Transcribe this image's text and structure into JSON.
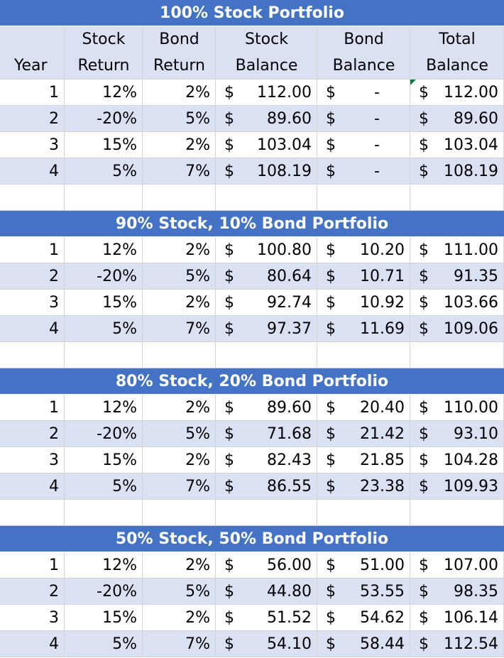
{
  "header": [
    [
      "Year"
    ],
    [
      "Stock",
      "Return"
    ],
    [
      "Bond",
      "Return"
    ],
    [
      "Stock",
      "Balance"
    ],
    [
      "Bond",
      "Balance"
    ],
    [
      "Total",
      "Balance"
    ]
  ],
  "sections": [
    {
      "title": "100% Stock Portfolio",
      "rows": [
        [
          "1",
          "12%",
          "2%",
          "$",
          "112.00",
          "$",
          "-",
          "$",
          "112.00"
        ],
        [
          "2",
          "-20%",
          "5%",
          "$",
          "89.60",
          "$",
          "-",
          "$",
          "89.60"
        ],
        [
          "3",
          "15%",
          "2%",
          "$",
          "103.04",
          "$",
          "-",
          "$",
          "103.04"
        ],
        [
          "4",
          "5%",
          "7%",
          "$",
          "108.19",
          "$",
          "-",
          "$",
          "108.19"
        ]
      ]
    },
    {
      "title": "90% Stock, 10% Bond Portfolio",
      "rows": [
        [
          "1",
          "12%",
          "2%",
          "$",
          "100.80",
          "$",
          "10.20",
          "$",
          "111.00"
        ],
        [
          "2",
          "-20%",
          "5%",
          "$",
          "80.64",
          "$",
          "10.71",
          "$",
          "91.35"
        ],
        [
          "3",
          "15%",
          "2%",
          "$",
          "92.74",
          "$",
          "10.92",
          "$",
          "103.66"
        ],
        [
          "4",
          "5%",
          "7%",
          "$",
          "97.37",
          "$",
          "11.69",
          "$",
          "109.06"
        ]
      ]
    },
    {
      "title": "80% Stock, 20% Bond Portfolio",
      "rows": [
        [
          "1",
          "12%",
          "2%",
          "$",
          "89.60",
          "$",
          "20.40",
          "$",
          "110.00"
        ],
        [
          "2",
          "-20%",
          "5%",
          "$",
          "71.68",
          "$",
          "21.42",
          "$",
          "93.10"
        ],
        [
          "3",
          "15%",
          "2%",
          "$",
          "82.43",
          "$",
          "21.85",
          "$",
          "104.28"
        ],
        [
          "4",
          "5%",
          "7%",
          "$",
          "86.55",
          "$",
          "23.38",
          "$",
          "109.93"
        ]
      ]
    },
    {
      "title": "50% Stock, 50% Bond Portfolio",
      "rows": [
        [
          "1",
          "12%",
          "2%",
          "$",
          "56.00",
          "$",
          "51.00",
          "$",
          "107.00"
        ],
        [
          "2",
          "-20%",
          "5%",
          "$",
          "44.80",
          "$",
          "53.55",
          "$",
          "98.35"
        ],
        [
          "3",
          "15%",
          "2%",
          "$",
          "51.52",
          "$",
          "54.62",
          "$",
          "106.14"
        ],
        [
          "4",
          "5%",
          "7%",
          "$",
          "54.10",
          "$",
          "58.44",
          "$",
          "112.54"
        ]
      ]
    }
  ]
}
